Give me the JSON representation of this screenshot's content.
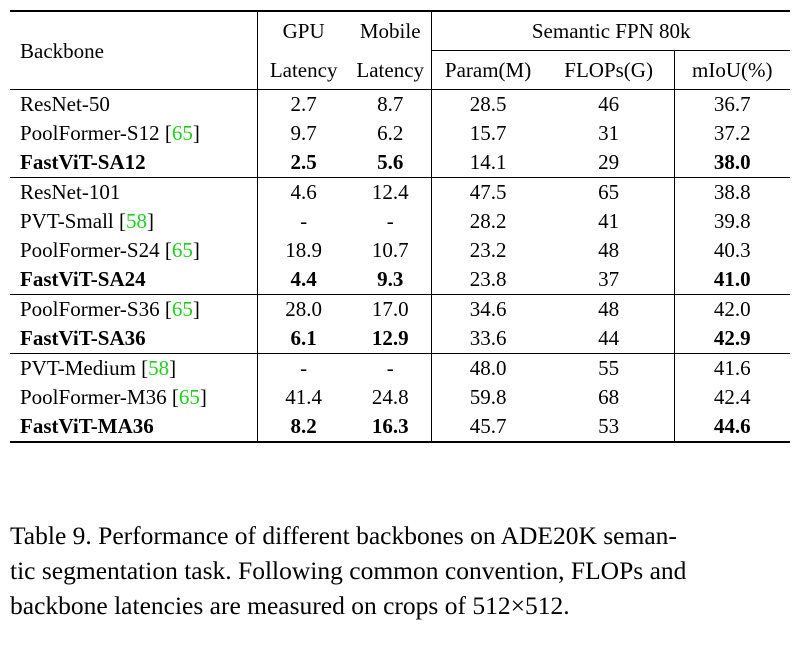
{
  "table": {
    "header": {
      "backbone": "Backbone",
      "gpu_top": "GPU",
      "mobile_top": "Mobile",
      "semantic": "Semantic FPN 80k",
      "gpu_bottom": "Latency",
      "mobile_bottom": "Latency",
      "param": "Param(M)",
      "flops": "FLOPs(G)",
      "miou": "mIoU(%)"
    },
    "groups": [
      [
        {
          "name": "ResNet-50",
          "ref": "",
          "gpu": "2.7",
          "mobile": "8.7",
          "param": "28.5",
          "flops": "46",
          "miou": "36.7",
          "bold": false
        },
        {
          "name": "PoolFormer-S12",
          "ref": "65",
          "gpu": "9.7",
          "mobile": "6.2",
          "param": "15.7",
          "flops": "31",
          "miou": "37.2",
          "bold": false
        },
        {
          "name": "FastViT-SA12",
          "ref": "",
          "gpu": "2.5",
          "mobile": "5.6",
          "param": "14.1",
          "flops": "29",
          "miou": "38.0",
          "bold": true
        }
      ],
      [
        {
          "name": "ResNet-101",
          "ref": "",
          "gpu": "4.6",
          "mobile": "12.4",
          "param": "47.5",
          "flops": "65",
          "miou": "38.8",
          "bold": false
        },
        {
          "name": "PVT-Small",
          "ref": "58",
          "gpu": "-",
          "mobile": "-",
          "param": "28.2",
          "flops": "41",
          "miou": "39.8",
          "bold": false
        },
        {
          "name": "PoolFormer-S24",
          "ref": "65",
          "gpu": "18.9",
          "mobile": "10.7",
          "param": "23.2",
          "flops": "48",
          "miou": "40.3",
          "bold": false
        },
        {
          "name": "FastViT-SA24",
          "ref": "",
          "gpu": "4.4",
          "mobile": "9.3",
          "param": "23.8",
          "flops": "37",
          "miou": "41.0",
          "bold": true
        }
      ],
      [
        {
          "name": "PoolFormer-S36",
          "ref": "65",
          "gpu": "28.0",
          "mobile": "17.0",
          "param": "34.6",
          "flops": "48",
          "miou": "42.0",
          "bold": false
        },
        {
          "name": "FastViT-SA36",
          "ref": "",
          "gpu": "6.1",
          "mobile": "12.9",
          "param": "33.6",
          "flops": "44",
          "miou": "42.9",
          "bold": true
        }
      ],
      [
        {
          "name": "PVT-Medium",
          "ref": "58",
          "gpu": "-",
          "mobile": "-",
          "param": "48.0",
          "flops": "55",
          "miou": "41.6",
          "bold": false
        },
        {
          "name": "PoolFormer-M36",
          "ref": "65",
          "gpu": "41.4",
          "mobile": "24.8",
          "param": "59.8",
          "flops": "68",
          "miou": "42.4",
          "bold": false
        },
        {
          "name": "FastViT-MA36",
          "ref": "",
          "gpu": "8.2",
          "mobile": "16.3",
          "param": "45.7",
          "flops": "53",
          "miou": "44.6",
          "bold": true
        }
      ]
    ]
  },
  "caption": {
    "lines": [
      "Table 9. Performance of different backbones on ADE20K seman-",
      "tic segmentation task. Following common convention, FLOPs and",
      "backbone latencies are measured on crops of 512×512."
    ]
  }
}
